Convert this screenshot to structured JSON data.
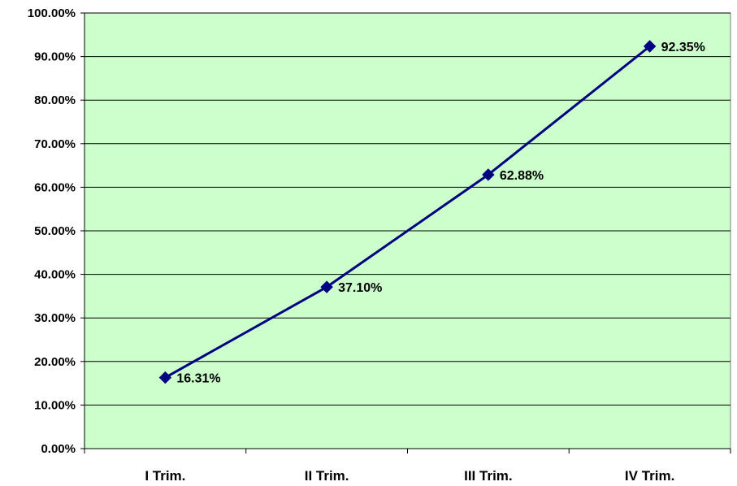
{
  "chart_data": {
    "type": "line",
    "categories": [
      "I Trim.",
      "II Trim.",
      "III Trim.",
      "IV Trim."
    ],
    "series": [
      {
        "values": [
          16.31,
          37.1,
          62.88,
          92.35
        ],
        "color": "#000080"
      }
    ],
    "data_labels": [
      "16.31%",
      "37.10%",
      "62.88%",
      "92.35%"
    ],
    "ylim": [
      0,
      100
    ],
    "yticks": [
      0,
      10,
      20,
      30,
      40,
      50,
      60,
      70,
      80,
      90,
      100
    ],
    "ytick_labels": [
      "0.00%",
      "10.00%",
      "20.00%",
      "30.00%",
      "40.00%",
      "50.00%",
      "60.00%",
      "70.00%",
      "80.00%",
      "90.00%",
      "100.00%"
    ],
    "title": "",
    "xlabel": "",
    "ylabel": "",
    "grid": true,
    "legend": "none",
    "colors": {
      "plot_background": "#ccffcc",
      "gridline": "#000000",
      "series": "#000080"
    }
  }
}
